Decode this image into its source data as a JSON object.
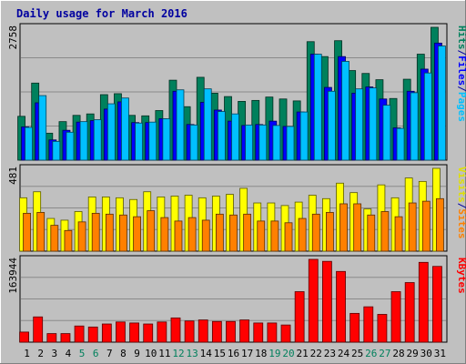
{
  "chart_data": {
    "type": "bar",
    "title": "Daily usage for March 2016",
    "categories": [
      "1",
      "2",
      "3",
      "4",
      "5",
      "6",
      "7",
      "8",
      "9",
      "10",
      "11",
      "12",
      "13",
      "14",
      "15",
      "16",
      "17",
      "18",
      "19",
      "20",
      "21",
      "22",
      "23",
      "24",
      "25",
      "26",
      "27",
      "28",
      "29",
      "30",
      "31"
    ],
    "weekend_days": [
      "5",
      "6",
      "12",
      "13",
      "19",
      "20",
      "26",
      "27"
    ],
    "panels": [
      {
        "id": "hits",
        "ymax_label": "2758",
        "ymax": 2758,
        "right_labels": [
          {
            "text": "Hits",
            "color": "#00805c"
          },
          {
            "text": "/",
            "color": "#0000a0"
          },
          {
            "text": "Files",
            "color": "#0000ff"
          },
          {
            "text": "/",
            "color": "#0000a0"
          },
          {
            "text": "Pages",
            "color": "#00c0ff"
          }
        ],
        "series": [
          {
            "name": "Hits",
            "color": "#00805c",
            "values": [
              910,
              1600,
              560,
              800,
              930,
              960,
              1360,
              1380,
              930,
              920,
              1030,
              1660,
              1110,
              1720,
              1390,
              1320,
              1220,
              1240,
              1310,
              1270,
              1230,
              2460,
              2150,
              2480,
              1860,
              1800,
              1670,
              1280,
              1680,
              2200,
              2758
            ]
          },
          {
            "name": "Files",
            "color": "#0000ff",
            "values": [
              690,
              1190,
              420,
              620,
              790,
              820,
              1060,
              1210,
              780,
              780,
              860,
              1430,
              740,
              1200,
              1040,
              810,
              720,
              740,
              810,
              700,
              1000,
              2200,
              1510,
              2150,
              1390,
              1520,
              1270,
              670,
              1430,
              1890,
              2430
            ]
          },
          {
            "name": "Pages",
            "color": "#00c0ff",
            "values": [
              680,
              1340,
              390,
              580,
              800,
              840,
              1170,
              1290,
              770,
              790,
              860,
              1460,
              730,
              1480,
              1010,
              960,
              730,
              730,
              720,
              700,
              1000,
              2200,
              1430,
              2050,
              1480,
              1500,
              1140,
              660,
              1400,
              1810,
              2370
            ]
          }
        ]
      },
      {
        "id": "visits",
        "ymax_label": "481",
        "ymax": 481,
        "right_labels": [
          {
            "text": "Visits",
            "color": "#e0e000"
          },
          {
            "text": "/",
            "color": "#0000a0"
          },
          {
            "text": "Sites",
            "color": "#ff8000"
          }
        ],
        "series": [
          {
            "name": "Visits",
            "color": "#ffff00",
            "values": [
              310,
              345,
              190,
              180,
              230,
              315,
              315,
              310,
              300,
              345,
              315,
              320,
              325,
              310,
              320,
              330,
              365,
              280,
              280,
              265,
              285,
              325,
              305,
              395,
              340,
              245,
              385,
              310,
              425,
              405,
              481
            ]
          },
          {
            "name": "Sites",
            "color": "#ff8000",
            "values": [
              220,
              225,
              150,
              120,
              170,
              220,
              215,
              210,
              200,
              235,
              195,
              175,
              195,
              180,
              215,
              210,
              215,
              175,
              175,
              165,
              190,
              215,
              225,
              275,
              275,
              210,
              230,
              200,
              280,
              290,
              305
            ]
          }
        ]
      },
      {
        "id": "kbytes",
        "ymax_label": "163944",
        "ymax": 163944,
        "right_labels": [
          {
            "text": "KBytes",
            "color": "#ff0000"
          }
        ],
        "series": [
          {
            "name": "KBytes",
            "color": "#ff0000",
            "values": [
              20000,
              50000,
              17000,
              17000,
              32000,
              30000,
              36000,
              40000,
              38000,
              36000,
              40000,
              48000,
              42000,
              44000,
              41000,
              41000,
              44000,
              38000,
              38000,
              34000,
              100000,
              163944,
              160000,
              140000,
              57000,
              70000,
              55000,
              100000,
              118000,
              158000,
              150000
            ]
          }
        ]
      }
    ]
  }
}
